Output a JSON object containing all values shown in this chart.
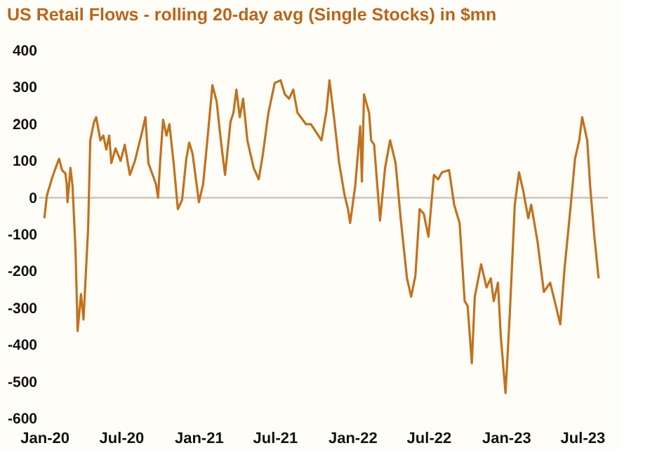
{
  "chart_data": {
    "type": "line",
    "title": "US Retail Flows - rolling 20-day avg (Single Stocks) in $mn",
    "series": [
      {
        "color": "#c0721f",
        "x": [
          "2020-01-01",
          "2020-01-07",
          "2020-01-20",
          "2020-01-30",
          "2020-02-05",
          "2020-02-12",
          "2020-02-20",
          "2020-02-23",
          "2020-02-25",
          "2020-03-03",
          "2020-03-08",
          "2020-03-15",
          "2020-03-20",
          "2020-03-28",
          "2020-04-03",
          "2020-04-14",
          "2020-04-19",
          "2020-04-28",
          "2020-05-03",
          "2020-05-13",
          "2020-05-20",
          "2020-05-27",
          "2020-06-03",
          "2020-06-08",
          "2020-06-18",
          "2020-06-30",
          "2020-07-10",
          "2020-07-22",
          "2020-08-03",
          "2020-08-18",
          "2020-08-28",
          "2020-09-04",
          "2020-09-12",
          "2020-09-22",
          "2020-09-27",
          "2020-10-02",
          "2020-10-09",
          "2020-10-17",
          "2020-10-24",
          "2020-11-03",
          "2020-11-13",
          "2020-11-23",
          "2020-12-03",
          "2020-12-10",
          "2020-12-18",
          "2021-01-02",
          "2021-01-12",
          "2021-01-22",
          "2021-02-03",
          "2021-02-13",
          "2021-02-23",
          "2021-03-05",
          "2021-03-18",
          "2021-03-25",
          "2021-04-01",
          "2021-04-09",
          "2021-04-17",
          "2021-04-27",
          "2021-05-12",
          "2021-05-24",
          "2021-06-03",
          "2021-06-16",
          "2021-07-01",
          "2021-07-15",
          "2021-07-25",
          "2021-08-04",
          "2021-08-14",
          "2021-08-24",
          "2021-09-13",
          "2021-09-25",
          "2021-10-20",
          "2021-11-01",
          "2021-11-08",
          "2021-11-20",
          "2021-12-01",
          "2021-12-14",
          "2021-12-22",
          "2021-12-27",
          "2022-01-08",
          "2022-01-20",
          "2022-01-24",
          "2022-01-29",
          "2022-02-10",
          "2022-02-15",
          "2022-02-22",
          "2022-03-08",
          "2022-03-20",
          "2022-04-01",
          "2022-04-14",
          "2022-04-26",
          "2022-05-11",
          "2022-05-21",
          "2022-05-31",
          "2022-06-10",
          "2022-06-20",
          "2022-07-01",
          "2022-07-14",
          "2022-07-24",
          "2022-08-02",
          "2022-08-19",
          "2022-08-31",
          "2022-09-13",
          "2022-09-25",
          "2022-10-02",
          "2022-10-12",
          "2022-10-19",
          "2022-11-03",
          "2022-11-16",
          "2022-11-26",
          "2022-12-03",
          "2022-12-13",
          "2022-12-20",
          "2022-12-31",
          "2023-01-10",
          "2023-01-22",
          "2023-02-01",
          "2023-02-11",
          "2023-02-23",
          "2023-03-02",
          "2023-03-17",
          "2023-04-01",
          "2023-04-16",
          "2023-04-28",
          "2023-05-10",
          "2023-05-20",
          "2023-06-03",
          "2023-06-14",
          "2023-06-24",
          "2023-07-01",
          "2023-07-13",
          "2023-07-20",
          "2023-07-30",
          "2023-08-09"
        ],
        "values": [
          -56,
          6,
          56,
          88,
          106,
          75,
          66,
          37,
          -12,
          81,
          31,
          -144,
          -362,
          -262,
          -331,
          -81,
          156,
          206,
          219,
          156,
          169,
          131,
          169,
          94,
          134,
          100,
          144,
          62,
          100,
          169,
          219,
          94,
          69,
          37,
          0,
          100,
          212,
          169,
          200,
          94,
          -31,
          -6,
          106,
          150,
          119,
          -12,
          37,
          156,
          306,
          262,
          156,
          62,
          206,
          231,
          294,
          219,
          269,
          156,
          81,
          50,
          119,
          231,
          312,
          319,
          281,
          269,
          294,
          231,
          200,
          200,
          156,
          237,
          319,
          206,
          94,
          6,
          -31,
          -69,
          31,
          194,
          44,
          281,
          231,
          156,
          144,
          -62,
          81,
          156,
          94,
          -56,
          -219,
          -269,
          -212,
          -31,
          -44,
          -106,
          62,
          50,
          69,
          75,
          -19,
          -69,
          -281,
          -294,
          -450,
          -269,
          -181,
          -244,
          -219,
          -281,
          -231,
          -381,
          -531,
          -319,
          -19,
          69,
          19,
          -56,
          -19,
          -119,
          -256,
          -231,
          -287,
          -344,
          -194,
          -31,
          106,
          156,
          219,
          156,
          31,
          -106,
          -219
        ]
      }
    ],
    "xlim": [
      "2019-12-20",
      "2023-08-31"
    ],
    "xticks": [
      {
        "value": "2020-01-01",
        "label": "Jan-20"
      },
      {
        "value": "2020-07-01",
        "label": "Jul-20"
      },
      {
        "value": "2021-01-01",
        "label": "Jan-21"
      },
      {
        "value": "2021-07-01",
        "label": "Jul-21"
      },
      {
        "value": "2022-01-01",
        "label": "Jan-22"
      },
      {
        "value": "2022-07-01",
        "label": "Jul-22"
      },
      {
        "value": "2023-01-01",
        "label": "Jan-23"
      },
      {
        "value": "2023-07-01",
        "label": "Jul-23"
      }
    ],
    "ylim": [
      -600,
      400
    ],
    "yticks": [
      -600,
      -500,
      -400,
      -300,
      -200,
      -100,
      0,
      100,
      200,
      300,
      400
    ],
    "ref_lines": [
      {
        "axis": "y",
        "value": 0,
        "color": "#c8bfb6"
      }
    ],
    "grid": false
  }
}
